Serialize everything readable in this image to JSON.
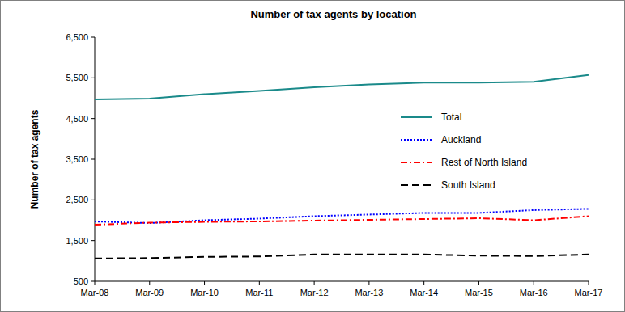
{
  "chart_data": {
    "type": "line",
    "title": "Number of tax agents by location",
    "y_label": "Number of tax agents",
    "categories": [
      "Mar-08",
      "Mar-09",
      "Mar-10",
      "Mar-11",
      "Mar-12",
      "Mar-13",
      "Mar-14",
      "Mar-15",
      "Mar-16",
      "Mar-17"
    ],
    "series": [
      {
        "name": "Total",
        "color": "#1a8a8a",
        "line_style": "solid",
        "values": [
          4970,
          4990,
          5100,
          5180,
          5270,
          5340,
          5380,
          5380,
          5400,
          5570
        ]
      },
      {
        "name": "Auckland",
        "color": "#0000ff",
        "line_style": "dotted",
        "values": [
          1970,
          1930,
          2000,
          2040,
          2100,
          2140,
          2180,
          2180,
          2250,
          2280
        ]
      },
      {
        "name": "Rest of North Island",
        "color": "#ff0000",
        "line_style": "dash-dot",
        "values": [
          1890,
          1940,
          1960,
          1970,
          1990,
          2010,
          2030,
          2050,
          2000,
          2100
        ]
      },
      {
        "name": "South Island",
        "color": "#000000",
        "line_style": "dashed",
        "values": [
          1060,
          1070,
          1100,
          1110,
          1160,
          1160,
          1160,
          1130,
          1120,
          1160
        ]
      }
    ],
    "ylim": [
      500,
      6500
    ],
    "yticks": [
      500,
      {
        "value": 1500,
        "label": "1,500"
      },
      {
        "value": 2500,
        "label": "2,500"
      },
      {
        "value": 3500,
        "label": "3,500"
      },
      {
        "value": 4500,
        "label": "4,500"
      },
      {
        "value": 5500,
        "label": "5,500"
      },
      {
        "value": 6500,
        "label": "6,500"
      }
    ],
    "grid": false,
    "legend": "right",
    "marker": "none"
  }
}
